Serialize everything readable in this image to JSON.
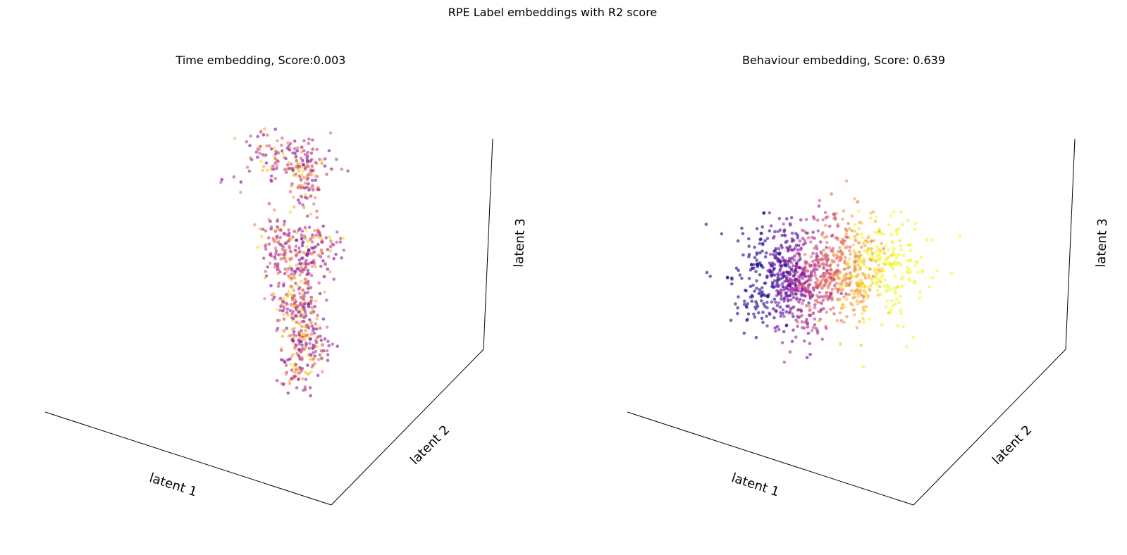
{
  "figure": {
    "suptitle": "RPE Label embeddings with R2 score"
  },
  "colormap": {
    "name": "plasma",
    "stops": [
      "#0d0887",
      "#6a00a8",
      "#b12a90",
      "#e16462",
      "#fca636",
      "#f0f921"
    ]
  },
  "chart_data": [
    {
      "type": "scatter",
      "projection": "3d",
      "title": "Time embedding, Score:0.003",
      "xlabel": "latent 1",
      "ylabel": "latent 2",
      "zlabel": "latent 3",
      "score": 0.003,
      "grid": false,
      "ticks": false,
      "clusters": [
        {
          "center": [
            -0.05,
            0.05,
            0.78
          ],
          "spread": [
            0.16,
            0.1,
            0.07
          ],
          "count": 150
        },
        {
          "center": [
            0.03,
            0.1,
            0.62
          ],
          "spread": [
            0.06,
            0.06,
            0.07
          ],
          "count": 60
        },
        {
          "center": [
            -0.1,
            -0.05,
            0.28
          ],
          "spread": [
            0.07,
            0.08,
            0.08
          ],
          "count": 90
        },
        {
          "center": [
            0.12,
            0.05,
            0.25
          ],
          "spread": [
            0.1,
            0.1,
            0.08
          ],
          "count": 120
        },
        {
          "center": [
            0.0,
            0.0,
            0.05
          ],
          "spread": [
            0.08,
            0.08,
            0.09
          ],
          "count": 100
        },
        {
          "center": [
            0.02,
            0.05,
            -0.15
          ],
          "spread": [
            0.1,
            0.08,
            0.08
          ],
          "count": 120
        },
        {
          "center": [
            0.05,
            0.1,
            -0.38
          ],
          "spread": [
            0.08,
            0.07,
            0.09
          ],
          "count": 130
        },
        {
          "center": [
            -0.02,
            0.03,
            -0.55
          ],
          "spread": [
            0.06,
            0.05,
            0.06
          ],
          "count": 40
        },
        {
          "center": [
            -0.4,
            -0.2,
            0.65
          ],
          "spread": [
            0.05,
            0.05,
            0.04
          ],
          "count": 5
        }
      ],
      "label_distribution": "mixed",
      "limits": {
        "x": [
          -1,
          1
        ],
        "y": [
          -1,
          1
        ],
        "z": [
          -1,
          1
        ]
      }
    },
    {
      "type": "scatter",
      "projection": "3d",
      "title": "Behaviour embedding, Score: 0.639",
      "xlabel": "latent 1",
      "ylabel": "latent 2",
      "zlabel": "latent 3",
      "score": 0.639,
      "grid": false,
      "ticks": false,
      "clusters": [
        {
          "center": [
            -0.15,
            -0.05,
            0.1
          ],
          "spread": [
            0.16,
            0.14,
            0.16
          ],
          "count": 700
        },
        {
          "center": [
            0.2,
            0.05,
            0.18
          ],
          "spread": [
            0.16,
            0.14,
            0.16
          ],
          "count": 500
        }
      ],
      "label_distribution": "gradient along latent 1 (low left, high right)",
      "limits": {
        "x": [
          -1,
          1
        ],
        "y": [
          -1,
          1
        ],
        "z": [
          -1,
          1
        ]
      }
    }
  ]
}
